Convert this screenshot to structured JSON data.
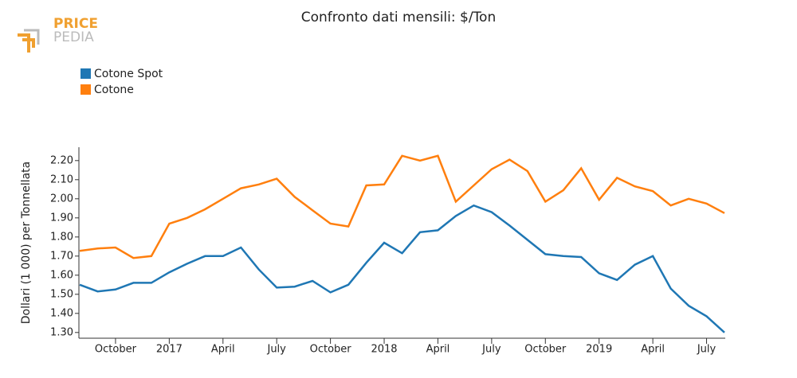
{
  "logo": [
    "PRICE",
    "PEDIA"
  ],
  "chart_data": {
    "type": "line",
    "title": "Confronto dati mensili: $/Ton",
    "ylabel": "Dollari (1 000) per Tonnellata",
    "x": [
      "2016-08",
      "2016-09",
      "2016-10",
      "2016-11",
      "2016-12",
      "2017-01",
      "2017-02",
      "2017-03",
      "2017-04",
      "2017-05",
      "2017-06",
      "2017-07",
      "2017-08",
      "2017-09",
      "2017-10",
      "2017-11",
      "2017-12",
      "2018-01",
      "2018-02",
      "2018-03",
      "2018-04",
      "2018-05",
      "2018-06",
      "2018-07",
      "2018-08",
      "2018-09",
      "2018-10",
      "2018-11",
      "2018-12",
      "2019-01",
      "2019-02",
      "2019-03",
      "2019-04",
      "2019-05",
      "2019-06",
      "2019-07",
      "2019-08"
    ],
    "series": [
      {
        "name": "Cotone Spot",
        "color": "#1f77b4",
        "values": [
          1.55,
          1.515,
          1.525,
          1.56,
          1.56,
          1.615,
          1.66,
          1.7,
          1.7,
          1.745,
          1.63,
          1.535,
          1.54,
          1.57,
          1.51,
          1.55,
          1.665,
          1.77,
          1.715,
          1.825,
          1.835,
          1.91,
          1.965,
          1.93,
          1.86,
          1.785,
          1.71,
          1.7,
          1.695,
          1.61,
          1.575,
          1.655,
          1.7,
          1.53,
          1.44,
          1.385,
          1.3
        ]
      },
      {
        "name": "Cotone",
        "color": "#ff7f0e",
        "values": [
          1.727,
          1.74,
          1.745,
          1.69,
          1.7,
          1.87,
          1.9,
          1.945,
          2.0,
          2.055,
          2.075,
          2.105,
          2.01,
          1.94,
          1.87,
          1.855,
          2.07,
          2.075,
          2.225,
          2.2,
          2.225,
          1.985,
          2.07,
          2.155,
          2.205,
          2.145,
          1.985,
          2.045,
          2.16,
          1.995,
          2.11,
          2.065,
          2.04,
          1.965,
          2.0,
          1.975,
          1.925
        ]
      }
    ],
    "xlim": [
      "2016-08",
      "2019-08"
    ],
    "xticks": [
      {
        "value": "2016-10",
        "label": "October"
      },
      {
        "value": "2017-01",
        "label": "2017"
      },
      {
        "value": "2017-04",
        "label": "April"
      },
      {
        "value": "2017-07",
        "label": "July"
      },
      {
        "value": "2017-10",
        "label": "October"
      },
      {
        "value": "2018-01",
        "label": "2018"
      },
      {
        "value": "2018-04",
        "label": "April"
      },
      {
        "value": "2018-07",
        "label": "July"
      },
      {
        "value": "2018-10",
        "label": "October"
      },
      {
        "value": "2019-01",
        "label": "2019"
      },
      {
        "value": "2019-04",
        "label": "April"
      },
      {
        "value": "2019-07",
        "label": "July"
      }
    ],
    "ylim": [
      1.27,
      2.27
    ],
    "yticks": [
      {
        "value": 1.3,
        "label": "1.30"
      },
      {
        "value": 1.4,
        "label": "1.40"
      },
      {
        "value": 1.5,
        "label": "1.50"
      },
      {
        "value": 1.6,
        "label": "1.60"
      },
      {
        "value": 1.7,
        "label": "1.70"
      },
      {
        "value": 1.8,
        "label": "1.80"
      },
      {
        "value": 1.9,
        "label": "1.90"
      },
      {
        "value": 2.0,
        "label": "2.00"
      },
      {
        "value": 2.1,
        "label": "2.10"
      },
      {
        "value": 2.2,
        "label": "2.20"
      }
    ],
    "grid": false
  }
}
